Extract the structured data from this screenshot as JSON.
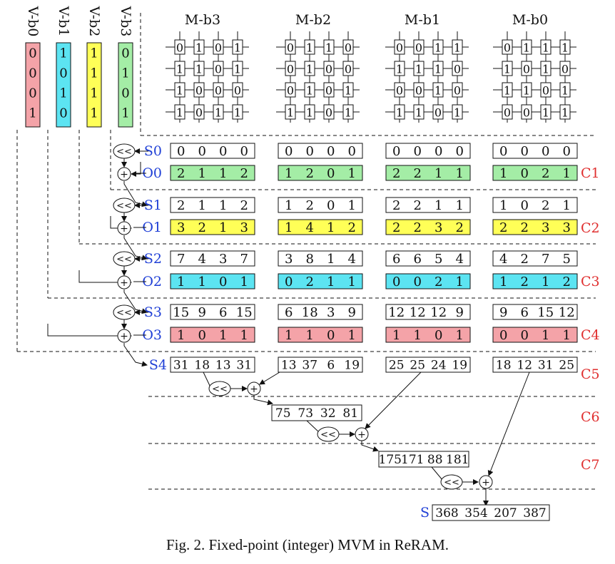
{
  "colors": {
    "pink": "#f4a3a8",
    "cyan": "#5ce4f2",
    "yellow": "#ffff57",
    "green": "#a4eda6",
    "blue_label": "#1f3fd6",
    "red_label": "#e03030",
    "dash": "#333333"
  },
  "input_vectors": [
    {
      "label": "V-b0",
      "values": [
        "0",
        "0",
        "0",
        "1"
      ],
      "color": "pink"
    },
    {
      "label": "V-b1",
      "values": [
        "1",
        "0",
        "1",
        "0"
      ],
      "color": "cyan"
    },
    {
      "label": "V-b2",
      "values": [
        "1",
        "1",
        "1",
        "1"
      ],
      "color": "yellow"
    },
    {
      "label": "V-b3",
      "values": [
        "0",
        "1",
        "0",
        "1"
      ],
      "color": "green"
    }
  ],
  "matrices": [
    {
      "label": "M-b3",
      "rows": [
        [
          "0",
          "1",
          "0",
          "1"
        ],
        [
          "1",
          "1",
          "0",
          "1"
        ],
        [
          "1",
          "0",
          "0",
          "0"
        ],
        [
          "1",
          "0",
          "1",
          "1"
        ]
      ]
    },
    {
      "label": "M-b2",
      "rows": [
        [
          "0",
          "1",
          "1",
          "0"
        ],
        [
          "0",
          "1",
          "0",
          "0"
        ],
        [
          "0",
          "1",
          "0",
          "1"
        ],
        [
          "1",
          "1",
          "0",
          "1"
        ]
      ]
    },
    {
      "label": "M-b1",
      "rows": [
        [
          "0",
          "0",
          "1",
          "1"
        ],
        [
          "1",
          "1",
          "1",
          "0"
        ],
        [
          "0",
          "0",
          "1",
          "0"
        ],
        [
          "1",
          "1",
          "0",
          "1"
        ]
      ]
    },
    {
      "label": "M-b0",
      "rows": [
        [
          "0",
          "1",
          "1",
          "1"
        ],
        [
          "1",
          "0",
          "1",
          "0"
        ],
        [
          "1",
          "1",
          "0",
          "1"
        ],
        [
          "0",
          "0",
          "1",
          "1"
        ]
      ]
    }
  ],
  "stages": [
    {
      "cycle": "C1",
      "s_label": "S0",
      "s": [
        [
          "0",
          "0",
          "0",
          "0"
        ],
        [
          "0",
          "0",
          "0",
          "0"
        ],
        [
          "0",
          "0",
          "0",
          "0"
        ],
        [
          "0",
          "0",
          "0",
          "0"
        ]
      ],
      "o_label": "O0",
      "o": [
        [
          "2",
          "1",
          "1",
          "2"
        ],
        [
          "1",
          "2",
          "0",
          "1"
        ],
        [
          "2",
          "2",
          "1",
          "1"
        ],
        [
          "1",
          "0",
          "2",
          "1"
        ]
      ],
      "o_color": "green"
    },
    {
      "cycle": "C2",
      "s_label": "S1",
      "s": [
        [
          "2",
          "1",
          "1",
          "2"
        ],
        [
          "1",
          "2",
          "0",
          "1"
        ],
        [
          "2",
          "2",
          "1",
          "1"
        ],
        [
          "1",
          "0",
          "2",
          "1"
        ]
      ],
      "o_label": "O1",
      "o": [
        [
          "3",
          "2",
          "1",
          "3"
        ],
        [
          "1",
          "4",
          "1",
          "2"
        ],
        [
          "2",
          "2",
          "3",
          "2"
        ],
        [
          "2",
          "2",
          "3",
          "3"
        ]
      ],
      "o_color": "yellow"
    },
    {
      "cycle": "C3",
      "s_label": "S2",
      "s": [
        [
          "7",
          "4",
          "3",
          "7"
        ],
        [
          "3",
          "8",
          "1",
          "4"
        ],
        [
          "6",
          "6",
          "5",
          "4"
        ],
        [
          "4",
          "2",
          "7",
          "5"
        ]
      ],
      "o_label": "O2",
      "o": [
        [
          "1",
          "1",
          "0",
          "1"
        ],
        [
          "0",
          "2",
          "1",
          "1"
        ],
        [
          "0",
          "0",
          "2",
          "1"
        ],
        [
          "1",
          "2",
          "1",
          "2"
        ]
      ],
      "o_color": "cyan"
    },
    {
      "cycle": "C4",
      "s_label": "S3",
      "s": [
        [
          "15",
          "9",
          "6",
          "15"
        ],
        [
          "6",
          "18",
          "3",
          "9"
        ],
        [
          "12",
          "12",
          "12",
          "9"
        ],
        [
          "9",
          "6",
          "15",
          "12"
        ]
      ],
      "o_label": "O3",
      "o": [
        [
          "1",
          "0",
          "1",
          "1"
        ],
        [
          "1",
          "1",
          "0",
          "1"
        ],
        [
          "1",
          "1",
          "0",
          "1"
        ],
        [
          "0",
          "0",
          "1",
          "1"
        ]
      ],
      "o_color": "pink"
    }
  ],
  "s4": {
    "label": "S4",
    "cycle": "C5",
    "values": [
      [
        "31",
        "18",
        "13",
        "31"
      ],
      [
        "13",
        "37",
        "6",
        "19"
      ],
      [
        "25",
        "25",
        "24",
        "19"
      ],
      [
        "18",
        "12",
        "31",
        "25"
      ]
    ]
  },
  "partials": [
    {
      "cycle": "C6",
      "values": [
        "75",
        "73",
        "32",
        "81"
      ]
    },
    {
      "cycle": "C7",
      "values": [
        "175",
        "171",
        "88",
        "181"
      ]
    }
  ],
  "final": {
    "label": "S",
    "values": [
      "368",
      "354",
      "207",
      "387"
    ]
  },
  "ops": {
    "shift": "<<",
    "add": "+"
  },
  "caption": "Fig. 2.   Fixed-point (integer) MVM in ReRAM."
}
